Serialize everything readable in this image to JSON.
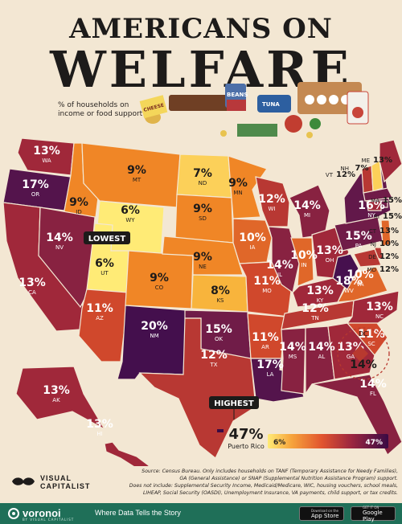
{
  "title": {
    "line1": "AMERICANS ON",
    "line2": "WELFARE"
  },
  "subtitle": "% of households on income or food support",
  "labels": {
    "lowest": "LOWEST",
    "highest": "HIGHEST",
    "legend_min": "6%",
    "legend_max": "47%",
    "dc": "DC"
  },
  "grocery_labels": {
    "beans": "BEANS",
    "tuna": "TUNA",
    "cheese": "CHEESE",
    "eggs": "EGGS"
  },
  "colors": {
    "background": "#f3e7d3",
    "low": "#ffeb76",
    "high": "#3a0b44",
    "badge": "#1d1b1a",
    "footer": "#1f6f58"
  },
  "chart_data": {
    "type": "choropleth",
    "title": "Americans on Welfare",
    "subtitle": "% of households on income or food support",
    "unit": "%",
    "range": [
      6,
      47
    ],
    "lowest": [
      "WY",
      "UT"
    ],
    "highest": "Puerto Rico",
    "states": [
      {
        "code": "WA",
        "value": 13
      },
      {
        "code": "OR",
        "value": 17
      },
      {
        "code": "CA",
        "value": 13
      },
      {
        "code": "ID",
        "value": 9
      },
      {
        "code": "NV",
        "value": 14
      },
      {
        "code": "MT",
        "value": 9
      },
      {
        "code": "WY",
        "value": 6
      },
      {
        "code": "UT",
        "value": 6
      },
      {
        "code": "AZ",
        "value": 11
      },
      {
        "code": "CO",
        "value": 9
      },
      {
        "code": "NM",
        "value": 20
      },
      {
        "code": "ND",
        "value": 7
      },
      {
        "code": "SD",
        "value": 9
      },
      {
        "code": "NE",
        "value": 9
      },
      {
        "code": "KS",
        "value": 8
      },
      {
        "code": "OK",
        "value": 15
      },
      {
        "code": "TX",
        "value": 12
      },
      {
        "code": "MN",
        "value": 9
      },
      {
        "code": "IA",
        "value": 10
      },
      {
        "code": "MO",
        "value": 11
      },
      {
        "code": "AR",
        "value": 11
      },
      {
        "code": "LA",
        "value": 17
      },
      {
        "code": "WI",
        "value": 12
      },
      {
        "code": "IL",
        "value": 14
      },
      {
        "code": "MI",
        "value": 14
      },
      {
        "code": "IN",
        "value": 10
      },
      {
        "code": "OH",
        "value": 13
      },
      {
        "code": "KY",
        "value": 13
      },
      {
        "code": "TN",
        "value": 12
      },
      {
        "code": "MS",
        "value": 14
      },
      {
        "code": "AL",
        "value": 14
      },
      {
        "code": "GA",
        "value": 13
      },
      {
        "code": "FL",
        "value": 14
      },
      {
        "code": "SC",
        "value": 11
      },
      {
        "code": "NC",
        "value": 13
      },
      {
        "code": "VA",
        "value": 10
      },
      {
        "code": "WV",
        "value": 18
      },
      {
        "code": "PA",
        "value": 15
      },
      {
        "code": "NY",
        "value": 16
      },
      {
        "code": "VT",
        "value": 12
      },
      {
        "code": "NH",
        "value": 7
      },
      {
        "code": "ME",
        "value": 13
      },
      {
        "code": "MA",
        "value": 15
      },
      {
        "code": "RI",
        "value": 15
      },
      {
        "code": "CT",
        "value": 13
      },
      {
        "code": "NJ",
        "value": 10
      },
      {
        "code": "DE",
        "value": 12
      },
      {
        "code": "MD",
        "value": 12
      },
      {
        "code": "DC",
        "value": 14
      },
      {
        "code": "AK",
        "value": 13
      },
      {
        "code": "HI",
        "value": 13
      },
      {
        "code": "Puerto Rico",
        "value": 47
      }
    ]
  },
  "source": {
    "line1": "Source: Census Bureau. Only includes households on TANF (Temporary Assistance for Needy Families),",
    "line2": "GA (General Assistance) or SNAP (Supplemental Nutrition Assistance Program) support.",
    "line3": "Does not include: Supplemental Security Income, Medicaid/Medicare, WIC, housing vouchers, school meals,",
    "line4": "LIHEAP, Social Security (OASDI), Unemployment Insurance, VA payments, child support, or tax credits."
  },
  "brand": {
    "name_line1": "VISUAL",
    "name_line2": "CAPITALIST",
    "voronoi": "voronoi",
    "voronoi_sub": "BY VISUAL CAPITALIST",
    "tagline": "Where Data Tells the Story"
  },
  "stores": {
    "apple_top": "Download on the",
    "apple": "App Store",
    "google_top": "GET IT ON",
    "google": "Google Play"
  }
}
